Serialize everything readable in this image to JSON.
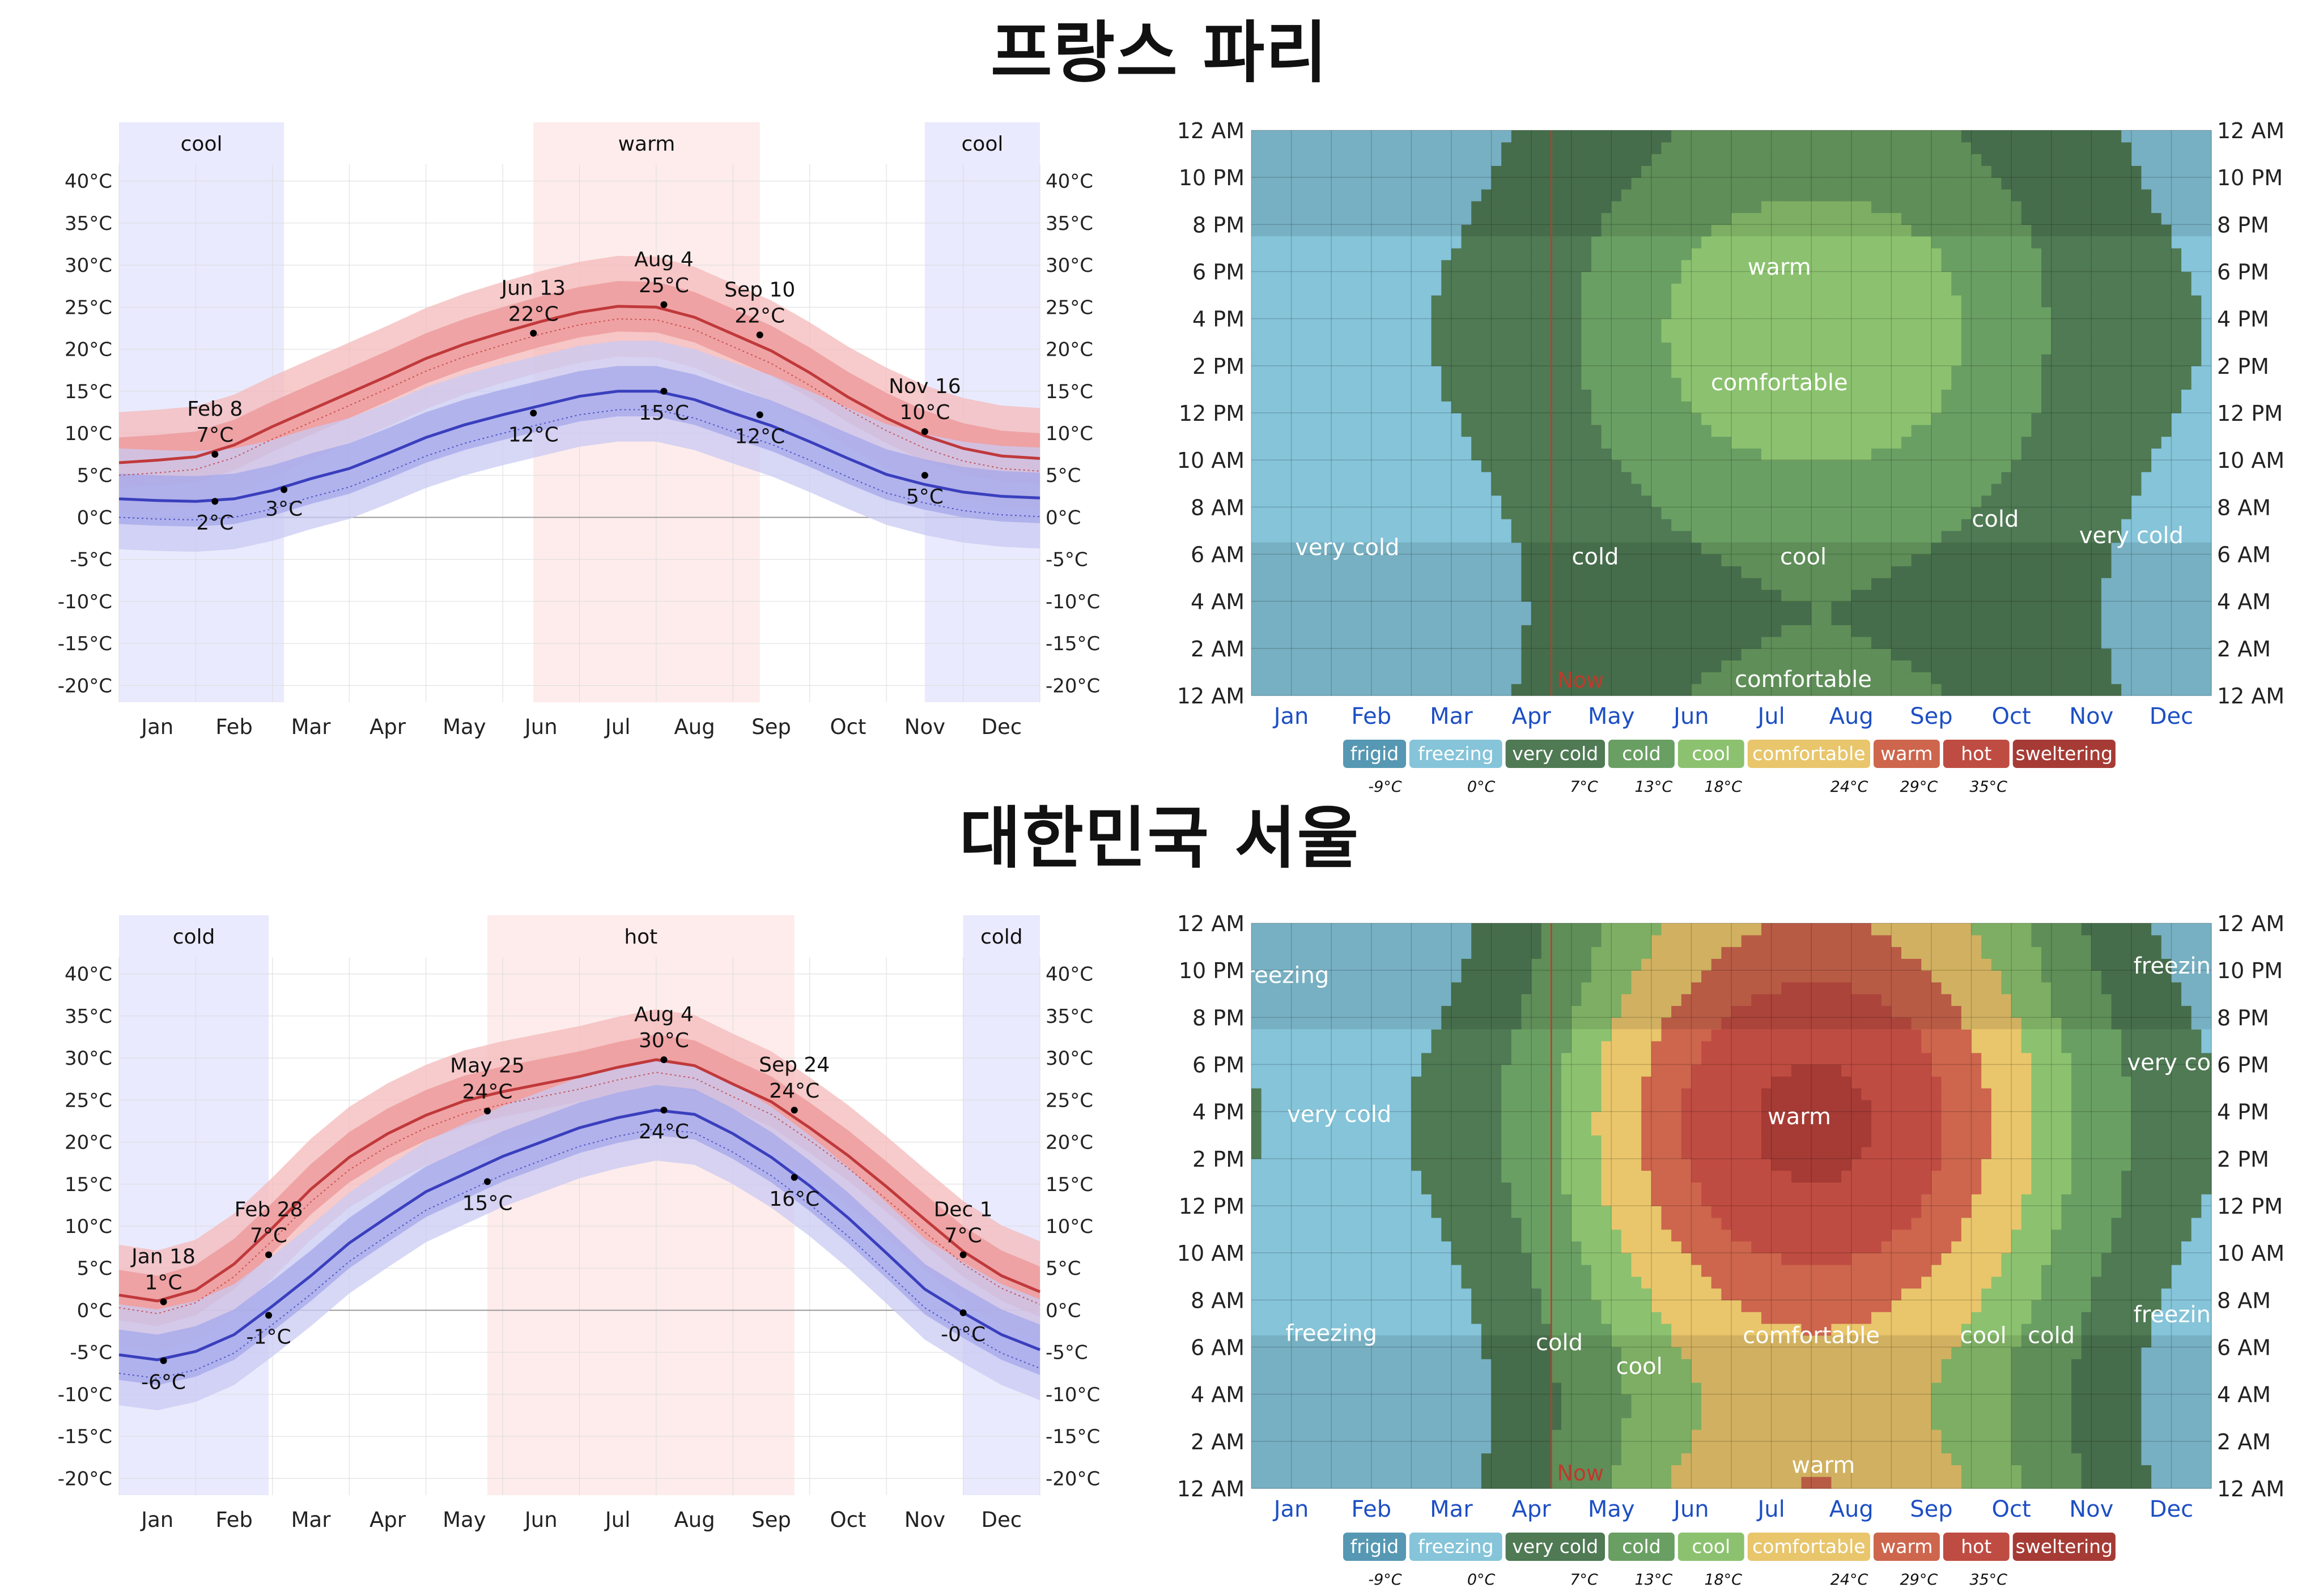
{
  "cities": [
    {
      "title": "프랑스 파리",
      "temp_chart": {
        "type": "line",
        "title": "프랑스 파리",
        "months": [
          "Jan",
          "Feb",
          "Mar",
          "Apr",
          "May",
          "Jun",
          "Jul",
          "Aug",
          "Sep",
          "Oct",
          "Nov",
          "Dec"
        ],
        "y_ticks": [
          40,
          35,
          30,
          25,
          20,
          15,
          10,
          5,
          0,
          -5,
          -10,
          -15,
          -20
        ],
        "ylim": [
          -22,
          42
        ],
        "seasons": [
          {
            "label": "cool",
            "start": 0.0,
            "end": 2.15,
            "color": "#e9eafd"
          },
          {
            "label": "warm",
            "start": 5.4,
            "end": 8.35,
            "color": "#fdeceb"
          },
          {
            "label": "cool",
            "start": 10.5,
            "end": 12.0,
            "color": "#e9eafd"
          }
        ],
        "high_series": {
          "name": "Average high",
          "color": "#c0393b",
          "x": [
            0.0,
            0.5,
            1.0,
            1.5,
            2.0,
            2.5,
            3.0,
            3.5,
            4.0,
            4.5,
            5.0,
            5.5,
            6.0,
            6.5,
            7.0,
            7.5,
            8.0,
            8.5,
            9.0,
            9.5,
            10.0,
            10.5,
            11.0,
            11.5,
            12.0
          ],
          "values": [
            6.5,
            6.8,
            7.2,
            8.6,
            10.8,
            12.8,
            14.8,
            16.8,
            18.9,
            20.6,
            22.0,
            23.3,
            24.4,
            25.1,
            25.0,
            23.8,
            21.8,
            19.8,
            17.2,
            14.3,
            11.8,
            9.7,
            8.2,
            7.3,
            7.0
          ]
        },
        "low_series": {
          "name": "Average low",
          "color": "#3a3fbd",
          "x": [
            0.0,
            0.5,
            1.0,
            1.5,
            2.0,
            2.5,
            3.0,
            3.5,
            4.0,
            4.5,
            5.0,
            5.5,
            6.0,
            6.5,
            7.0,
            7.5,
            8.0,
            8.5,
            9.0,
            9.5,
            10.0,
            10.5,
            11.0,
            11.5,
            12.0
          ],
          "values": [
            2.2,
            2.0,
            1.9,
            2.2,
            3.2,
            4.6,
            5.8,
            7.6,
            9.5,
            11.0,
            12.2,
            13.3,
            14.4,
            15.0,
            15.0,
            14.0,
            12.4,
            10.9,
            9.0,
            7.0,
            5.1,
            3.9,
            3.0,
            2.5,
            2.3
          ]
        },
        "band_width_inner": 3,
        "band_width_outer": 6,
        "annotations": [
          {
            "date": "Feb 8",
            "value": "7°C",
            "x": 1.25,
            "temp": 7.5,
            "pos": "above"
          },
          {
            "date": "",
            "value": "2°C",
            "x": 1.25,
            "temp": 1.9,
            "pos": "below"
          },
          {
            "date": "",
            "value": "3°C",
            "x": 2.15,
            "temp": 3.3,
            "pos": "belowright"
          },
          {
            "date": "Jun 13",
            "value": "22°C",
            "x": 5.4,
            "temp": 21.9,
            "pos": "above"
          },
          {
            "date": "",
            "value": "12°C",
            "x": 5.4,
            "temp": 12.4,
            "pos": "below"
          },
          {
            "date": "Aug 4",
            "value": "25°C",
            "x": 7.1,
            "temp": 25.3,
            "pos": "above"
          },
          {
            "date": "",
            "value": "15°C",
            "x": 7.1,
            "temp": 15.0,
            "pos": "below"
          },
          {
            "date": "Sep 10",
            "value": "22°C",
            "x": 8.35,
            "temp": 21.7,
            "pos": "above"
          },
          {
            "date": "",
            "value": "12°C",
            "x": 8.35,
            "temp": 12.2,
            "pos": "below"
          },
          {
            "date": "Nov 16",
            "value": "10°C",
            "x": 10.5,
            "temp": 10.2,
            "pos": "above"
          },
          {
            "date": "",
            "value": "5°C",
            "x": 10.5,
            "temp": 5.0,
            "pos": "below"
          }
        ]
      },
      "heat_chart": {
        "type": "heatmap",
        "y_labels": [
          "12 AM",
          "10 PM",
          "8 PM",
          "6 PM",
          "4 PM",
          "2 PM",
          "12 PM",
          "10 AM",
          "8 AM",
          "6 AM",
          "4 AM",
          "2 AM",
          "12 AM"
        ],
        "x_labels": [
          "Jan",
          "Feb",
          "Mar",
          "Apr",
          "May",
          "Jun",
          "Jul",
          "Aug",
          "Sep",
          "Oct",
          "Nov",
          "Dec"
        ],
        "now_label": "Now",
        "now_month": 3.75,
        "base_temp": 4.5,
        "seasonal_amplitude": 8,
        "diurnal_base": 2.0,
        "diurnal_amplitude": 3.5,
        "peak_hour": 15.5,
        "region_labels": [
          {
            "text": "warm",
            "m": 6.6,
            "h": 18.2
          },
          {
            "text": "comfortable",
            "m": 6.6,
            "h": 13.3
          },
          {
            "text": "very cold",
            "m": 1.2,
            "h": 6.3
          },
          {
            "text": "cold",
            "m": 4.3,
            "h": 5.9
          },
          {
            "text": "cool",
            "m": 6.9,
            "h": 5.9
          },
          {
            "text": "cold",
            "m": 9.3,
            "h": 7.5
          },
          {
            "text": "very cold",
            "m": 11.0,
            "h": 6.8
          },
          {
            "text": "comfortable",
            "m": 6.9,
            "h": 0.7
          }
        ]
      }
    },
    {
      "title": "대한민국 서울",
      "temp_chart": {
        "type": "line",
        "title": "대한민국 서울",
        "months": [
          "Jan",
          "Feb",
          "Mar",
          "Apr",
          "May",
          "Jun",
          "Jul",
          "Aug",
          "Sep",
          "Oct",
          "Nov",
          "Dec"
        ],
        "y_ticks": [
          40,
          35,
          30,
          25,
          20,
          15,
          10,
          5,
          0,
          -5,
          -10,
          -15,
          -20
        ],
        "ylim": [
          -22,
          42
        ],
        "seasons": [
          {
            "label": "cold",
            "start": 0.0,
            "end": 1.95,
            "color": "#e9eafd"
          },
          {
            "label": "hot",
            "start": 4.8,
            "end": 8.8,
            "color": "#fdeceb"
          },
          {
            "label": "cold",
            "start": 11.0,
            "end": 12.0,
            "color": "#e9eafd"
          }
        ],
        "high_series": {
          "name": "Average high",
          "color": "#c0393b",
          "x": [
            0.0,
            0.5,
            1.0,
            1.5,
            2.0,
            2.5,
            3.0,
            3.5,
            4.0,
            4.5,
            5.0,
            5.5,
            6.0,
            6.5,
            7.0,
            7.5,
            8.0,
            8.5,
            9.0,
            9.5,
            10.0,
            10.5,
            11.0,
            11.5,
            12.0
          ],
          "values": [
            1.8,
            1.1,
            2.4,
            5.5,
            9.8,
            14.4,
            18.2,
            21.0,
            23.2,
            24.9,
            26.0,
            26.9,
            27.8,
            28.9,
            29.8,
            29.1,
            26.9,
            24.8,
            21.7,
            18.4,
            14.7,
            10.8,
            7.0,
            4.1,
            2.2
          ]
        },
        "low_series": {
          "name": "Average low",
          "color": "#3a3fbd",
          "x": [
            0.0,
            0.5,
            1.0,
            1.5,
            2.0,
            2.5,
            3.0,
            3.5,
            4.0,
            4.5,
            5.0,
            5.5,
            6.0,
            6.5,
            7.0,
            7.5,
            8.0,
            8.5,
            9.0,
            9.5,
            10.0,
            10.5,
            11.0,
            11.5,
            12.0
          ],
          "values": [
            -5.3,
            -5.9,
            -4.9,
            -2.9,
            0.5,
            4.1,
            8.0,
            11.1,
            14.1,
            16.2,
            18.3,
            20.0,
            21.7,
            22.9,
            23.8,
            23.3,
            21.0,
            18.2,
            14.8,
            11.0,
            6.8,
            2.5,
            -0.3,
            -2.9,
            -4.7
          ]
        },
        "band_width_inner": 3,
        "band_width_outer": 6,
        "annotations": [
          {
            "date": "Jan 18",
            "value": "1°C",
            "x": 0.58,
            "temp": 1.0,
            "pos": "above"
          },
          {
            "date": "",
            "value": "-6°C",
            "x": 0.58,
            "temp": -6.0,
            "pos": "below"
          },
          {
            "date": "Feb 28",
            "value": "7°C",
            "x": 1.95,
            "temp": 6.6,
            "pos": "above"
          },
          {
            "date": "",
            "value": "-1°C",
            "x": 1.95,
            "temp": -0.6,
            "pos": "below"
          },
          {
            "date": "May 25",
            "value": "24°C",
            "x": 4.8,
            "temp": 23.7,
            "pos": "above"
          },
          {
            "date": "",
            "value": "15°C",
            "x": 4.8,
            "temp": 15.3,
            "pos": "below"
          },
          {
            "date": "Aug 4",
            "value": "30°C",
            "x": 7.1,
            "temp": 29.8,
            "pos": "above"
          },
          {
            "date": "",
            "value": "24°C",
            "x": 7.1,
            "temp": 23.8,
            "pos": "below"
          },
          {
            "date": "Sep 24",
            "value": "24°C",
            "x": 8.8,
            "temp": 23.8,
            "pos": "above"
          },
          {
            "date": "",
            "value": "16°C",
            "x": 8.8,
            "temp": 15.8,
            "pos": "below"
          },
          {
            "date": "Dec 1",
            "value": "7°C",
            "x": 11.0,
            "temp": 6.6,
            "pos": "above"
          },
          {
            "date": "",
            "value": "-0°C",
            "x": 11.0,
            "temp": -0.3,
            "pos": "below"
          }
        ]
      },
      "heat_chart": {
        "type": "heatmap",
        "y_labels": [
          "12 AM",
          "10 PM",
          "8 PM",
          "6 PM",
          "4 PM",
          "2 PM",
          "12 PM",
          "10 AM",
          "8 AM",
          "6 AM",
          "4 AM",
          "2 AM",
          "12 AM"
        ],
        "x_labels": [
          "Jan",
          "Feb",
          "Mar",
          "Apr",
          "May",
          "Jun",
          "Jul",
          "Aug",
          "Sep",
          "Oct",
          "Nov",
          "Dec"
        ],
        "now_label": "Now",
        "now_month": 3.75,
        "base_temp": 12.0,
        "seasonal_amplitude": 17,
        "diurnal_base": 3.0,
        "diurnal_amplitude": 4.5,
        "peak_hour": 15.5,
        "region_labels": [
          {
            "text": "freezing",
            "m": 0.4,
            "h": 21.8
          },
          {
            "text": "freezing",
            "m": 11.6,
            "h": 22.2
          },
          {
            "text": "very cold",
            "m": 11.6,
            "h": 18.1
          },
          {
            "text": "very cold",
            "m": 1.1,
            "h": 15.9
          },
          {
            "text": "warm",
            "m": 6.85,
            "h": 15.8
          },
          {
            "text": "freezing",
            "m": 1.0,
            "h": 6.6
          },
          {
            "text": "freezing",
            "m": 11.6,
            "h": 7.4
          },
          {
            "text": "cold",
            "m": 3.85,
            "h": 6.2
          },
          {
            "text": "cool",
            "m": 4.85,
            "h": 5.2
          },
          {
            "text": "comfortable",
            "m": 7.0,
            "h": 6.5
          },
          {
            "text": "cool",
            "m": 9.15,
            "h": 6.5
          },
          {
            "text": "cold",
            "m": 10.0,
            "h": 6.5
          },
          {
            "text": "warm",
            "m": 7.15,
            "h": 1.0
          }
        ]
      }
    }
  ],
  "legend": {
    "items": [
      {
        "label": "frigid",
        "color": "#5698b3"
      },
      {
        "label": "freezing",
        "color": "#85c4d9"
      },
      {
        "label": "very cold",
        "color": "#4f7a54"
      },
      {
        "label": "cold",
        "color": "#6a9f63"
      },
      {
        "label": "cool",
        "color": "#8cc26f"
      },
      {
        "label": "comfortable",
        "color": "#e9c66c"
      },
      {
        "label": "warm",
        "color": "#cd664d"
      },
      {
        "label": "hot",
        "color": "#bf4c42"
      },
      {
        "label": "sweltering",
        "color": "#a63b35"
      }
    ],
    "thresholds": [
      "-9°C",
      "0°C",
      "7°C",
      "13°C",
      "18°C",
      "24°C",
      "29°C",
      "35°C"
    ]
  },
  "colors": {
    "high_line": "#c0393b",
    "low_line": "#3a3fbd",
    "high_band_outer": "#f4b9b9",
    "high_band_inner": "#ec9597",
    "low_band_outer": "#c9caf3",
    "low_band_inner": "#a4a7ea",
    "grid": "#dcdcdc",
    "zero_line": "#9a9a9a",
    "now_line": "#c0392b",
    "month_label": "#1d4fc4",
    "region_label": "#ffffff"
  }
}
